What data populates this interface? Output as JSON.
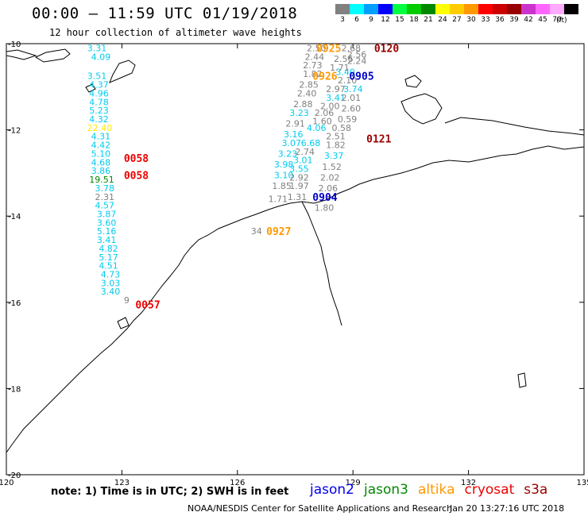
{
  "header": {
    "title": "00:00 – 11:59 UTC 01/19/2018",
    "subtitle": "12 hour collection of altimeter wave heights"
  },
  "color_scale": {
    "unit": "(ft)",
    "steps": [
      {
        "label": "3",
        "color": "#808080"
      },
      {
        "label": "6",
        "color": "#00ffff"
      },
      {
        "label": "9",
        "color": "#00a0ff"
      },
      {
        "label": "12",
        "color": "#0000ff"
      },
      {
        "label": "15",
        "color": "#00ff40"
      },
      {
        "label": "18",
        "color": "#00cc00"
      },
      {
        "label": "21",
        "color": "#008800"
      },
      {
        "label": "24",
        "color": "#ffff00"
      },
      {
        "label": "27",
        "color": "#ffcc00"
      },
      {
        "label": "30",
        "color": "#ff9900"
      },
      {
        "label": "33",
        "color": "#ff0000"
      },
      {
        "label": "36",
        "color": "#cc0000"
      },
      {
        "label": "39",
        "color": "#990000"
      },
      {
        "label": "42",
        "color": "#cc33cc"
      },
      {
        "label": "45",
        "color": "#ff66ff"
      },
      {
        "label": "70",
        "color": "#ffaaff"
      },
      {
        "label": "",
        "color": "#000000"
      }
    ]
  },
  "map": {
    "lon_ticks": [
      "120",
      "123",
      "126",
      "129",
      "132",
      "135"
    ],
    "lat_ticks": [
      "-10",
      "-12",
      "-14",
      "-16",
      "-18",
      "-20"
    ],
    "lon_range": [
      120,
      135
    ],
    "lat_range": [
      -20,
      -10
    ]
  },
  "observations": [
    {
      "t": "3.31",
      "c": "#00ccee",
      "lon": 122.1,
      "lat": -10.1
    },
    {
      "t": "4.09",
      "c": "#00ccee",
      "lon": 122.2,
      "lat": -10.3
    },
    {
      "t": "3.51",
      "c": "#00ccee",
      "lon": 122.1,
      "lat": -10.75
    },
    {
      "t": "4.37",
      "c": "#00ccee",
      "lon": 122.15,
      "lat": -10.95
    },
    {
      "t": "4.96",
      "c": "#00ccee",
      "lon": 122.15,
      "lat": -11.15
    },
    {
      "t": "4.78",
      "c": "#00ccee",
      "lon": 122.15,
      "lat": -11.35
    },
    {
      "t": "5.23",
      "c": "#00ccee",
      "lon": 122.15,
      "lat": -11.55
    },
    {
      "t": "4.32",
      "c": "#00ccee",
      "lon": 122.15,
      "lat": -11.75
    },
    {
      "t": "22.40",
      "c": "#ffee00",
      "lon": 122.1,
      "lat": -11.95
    },
    {
      "t": "4.31",
      "c": "#00ccee",
      "lon": 122.2,
      "lat": -12.15
    },
    {
      "t": "4.42",
      "c": "#00ccee",
      "lon": 122.2,
      "lat": -12.35
    },
    {
      "t": "5.10",
      "c": "#00ccee",
      "lon": 122.2,
      "lat": -12.55
    },
    {
      "t": "4.68",
      "c": "#00ccee",
      "lon": 122.2,
      "lat": -12.75
    },
    {
      "t": "3.86",
      "c": "#00ccee",
      "lon": 122.2,
      "lat": -12.95
    },
    {
      "t": "19.51",
      "c": "#008800",
      "lon": 122.15,
      "lat": -13.15
    },
    {
      "t": "3.78",
      "c": "#00ccee",
      "lon": 122.3,
      "lat": -13.35
    },
    {
      "t": "2.31",
      "c": "#808080",
      "lon": 122.3,
      "lat": -13.55
    },
    {
      "t": "4.57",
      "c": "#00ccee",
      "lon": 122.3,
      "lat": -13.75
    },
    {
      "t": "3.87",
      "c": "#00ccee",
      "lon": 122.35,
      "lat": -13.95
    },
    {
      "t": "3.60",
      "c": "#00ccee",
      "lon": 122.35,
      "lat": -14.15
    },
    {
      "t": "5.16",
      "c": "#00ccee",
      "lon": 122.35,
      "lat": -14.35
    },
    {
      "t": "3.41",
      "c": "#00ccee",
      "lon": 122.35,
      "lat": -14.55
    },
    {
      "t": "4.82",
      "c": "#00ccee",
      "lon": 122.4,
      "lat": -14.75
    },
    {
      "t": "5.17",
      "c": "#00ccee",
      "lon": 122.4,
      "lat": -14.95
    },
    {
      "t": "4.51",
      "c": "#00ccee",
      "lon": 122.4,
      "lat": -15.15
    },
    {
      "t": "4.73",
      "c": "#00ccee",
      "lon": 122.45,
      "lat": -15.35
    },
    {
      "t": "3.03",
      "c": "#00ccee",
      "lon": 122.45,
      "lat": -15.55
    },
    {
      "t": "3.40",
      "c": "#00ccee",
      "lon": 122.45,
      "lat": -15.75
    },
    {
      "t": "9",
      "c": "#808080",
      "lon": 123.05,
      "lat": -15.95
    },
    {
      "t": "2.50",
      "c": "#808080",
      "lon": 127.8,
      "lat": -10.1
    },
    {
      "t": "2.68",
      "c": "#808080",
      "lon": 128.7,
      "lat": -10.1
    },
    {
      "t": "2.56",
      "c": "#808080",
      "lon": 128.85,
      "lat": -10.25
    },
    {
      "t": "2.44",
      "c": "#808080",
      "lon": 127.75,
      "lat": -10.3
    },
    {
      "t": "2.56",
      "c": "#808080",
      "lon": 128.5,
      "lat": -10.35
    },
    {
      "t": "2.24",
      "c": "#808080",
      "lon": 128.85,
      "lat": -10.4
    },
    {
      "t": "2.73",
      "c": "#808080",
      "lon": 127.7,
      "lat": -10.5
    },
    {
      "t": "1.71",
      "c": "#808080",
      "lon": 128.4,
      "lat": -10.55
    },
    {
      "t": "1.82",
      "c": "#808080",
      "lon": 127.7,
      "lat": -10.7
    },
    {
      "t": "3.40",
      "c": "#00ccee",
      "lon": 128.55,
      "lat": -10.65
    },
    {
      "t": "2.10",
      "c": "#808080",
      "lon": 128.6,
      "lat": -10.85
    },
    {
      "t": "2.85",
      "c": "#808080",
      "lon": 127.6,
      "lat": -10.95
    },
    {
      "t": "2.97",
      "c": "#808080",
      "lon": 128.3,
      "lat": -11.05
    },
    {
      "t": "3.74",
      "c": "#00ccee",
      "lon": 128.75,
      "lat": -11.05
    },
    {
      "t": "2.40",
      "c": "#808080",
      "lon": 127.55,
      "lat": -11.15
    },
    {
      "t": "3.41",
      "c": "#00ccee",
      "lon": 128.3,
      "lat": -11.25
    },
    {
      "t": "2.01",
      "c": "#808080",
      "lon": 128.7,
      "lat": -11.25
    },
    {
      "t": "2.88",
      "c": "#808080",
      "lon": 127.45,
      "lat": -11.4
    },
    {
      "t": "2.00",
      "c": "#808080",
      "lon": 128.15,
      "lat": -11.45
    },
    {
      "t": "2.60",
      "c": "#808080",
      "lon": 128.7,
      "lat": -11.5
    },
    {
      "t": "3.23",
      "c": "#00ccee",
      "lon": 127.35,
      "lat": -11.6
    },
    {
      "t": "2.06",
      "c": "#808080",
      "lon": 128.0,
      "lat": -11.6
    },
    {
      "t": "1.60",
      "c": "#808080",
      "lon": 127.95,
      "lat": -11.8
    },
    {
      "t": "0.59",
      "c": "#808080",
      "lon": 128.6,
      "lat": -11.75
    },
    {
      "t": "2.91",
      "c": "#808080",
      "lon": 127.25,
      "lat": -11.85
    },
    {
      "t": "4.06",
      "c": "#00ccee",
      "lon": 127.8,
      "lat": -11.95
    },
    {
      "t": "0.58",
      "c": "#808080",
      "lon": 128.45,
      "lat": -11.95
    },
    {
      "t": "3.16",
      "c": "#00ccee",
      "lon": 127.2,
      "lat": -12.1
    },
    {
      "t": "2.51",
      "c": "#808080",
      "lon": 128.3,
      "lat": -12.15
    },
    {
      "t": "3.07",
      "c": "#00ccee",
      "lon": 127.15,
      "lat": -12.3
    },
    {
      "t": "6.68",
      "c": "#00ccee",
      "lon": 127.65,
      "lat": -12.3
    },
    {
      "t": "1.82",
      "c": "#808080",
      "lon": 128.3,
      "lat": -12.35
    },
    {
      "t": "3.23",
      "c": "#00ccee",
      "lon": 127.05,
      "lat": -12.55
    },
    {
      "t": "2.74",
      "c": "#808080",
      "lon": 127.5,
      "lat": -12.5
    },
    {
      "t": "3.37",
      "c": "#00ccee",
      "lon": 128.25,
      "lat": -12.6
    },
    {
      "t": "3.01",
      "c": "#00ccee",
      "lon": 127.45,
      "lat": -12.7
    },
    {
      "t": "3.98",
      "c": "#00ccee",
      "lon": 126.95,
      "lat": -12.8
    },
    {
      "t": "3.55",
      "c": "#00ccee",
      "lon": 127.35,
      "lat": -12.9
    },
    {
      "t": "1.52",
      "c": "#808080",
      "lon": 128.2,
      "lat": -12.85
    },
    {
      "t": "3.10",
      "c": "#00ccee",
      "lon": 126.95,
      "lat": -13.05
    },
    {
      "t": "2.92",
      "c": "#808080",
      "lon": 127.35,
      "lat": -13.1
    },
    {
      "t": "2.02",
      "c": "#808080",
      "lon": 128.15,
      "lat": -13.1
    },
    {
      "t": "1.85",
      "c": "#808080",
      "lon": 126.9,
      "lat": -13.3
    },
    {
      "t": "1.97",
      "c": "#808080",
      "lon": 127.35,
      "lat": -13.3
    },
    {
      "t": "2.06",
      "c": "#808080",
      "lon": 128.1,
      "lat": -13.35
    },
    {
      "t": "1.71",
      "c": "#808080",
      "lon": 126.8,
      "lat": -13.6
    },
    {
      "t": "1.31",
      "c": "#808080",
      "lon": 127.3,
      "lat": -13.55
    },
    {
      "t": "1.80",
      "c": "#808080",
      "lon": 128.0,
      "lat": -13.8
    },
    {
      "t": "34",
      "c": "#808080",
      "lon": 126.35,
      "lat": -14.35
    }
  ],
  "passes": [
    {
      "t": "0925",
      "c": "#ff9900",
      "lon": 128.05,
      "lat": -10.1
    },
    {
      "t": "0120",
      "c": "#990000",
      "lon": 129.55,
      "lat": -10.1
    },
    {
      "t": "0926",
      "c": "#ff9900",
      "lon": 127.95,
      "lat": -10.75
    },
    {
      "t": "0905",
      "c": "#0000cc",
      "lon": 128.9,
      "lat": -10.75
    },
    {
      "t": "0121",
      "c": "#990000",
      "lon": 129.35,
      "lat": -12.2
    },
    {
      "t": "0058",
      "c": "#ee0000",
      "lon": 123.05,
      "lat": -12.65
    },
    {
      "t": "0058",
      "c": "#ee0000",
      "lon": 123.05,
      "lat": -13.05
    },
    {
      "t": "0904",
      "c": "#0000cc",
      "lon": 127.95,
      "lat": -13.55
    },
    {
      "t": "0927",
      "c": "#ff9900",
      "lon": 126.75,
      "lat": -14.35
    },
    {
      "t": "0057",
      "c": "#ee0000",
      "lon": 123.35,
      "lat": -16.05
    }
  ],
  "footer": {
    "note": "note: 1) Time is in UTC; 2) SWH is in feet",
    "satellites": [
      {
        "name": "jason2",
        "color": "#0000ee"
      },
      {
        "name": "jason3",
        "color": "#008800"
      },
      {
        "name": "altika",
        "color": "#ff9900"
      },
      {
        "name": "cryosat",
        "color": "#ee0000"
      },
      {
        "name": "s3a",
        "color": "#990000"
      }
    ],
    "credit": "NOAA/NESDIS Center for Satellite Applications and Research",
    "timestamp": "Jan 20 13:27:16 UTC 2018"
  }
}
